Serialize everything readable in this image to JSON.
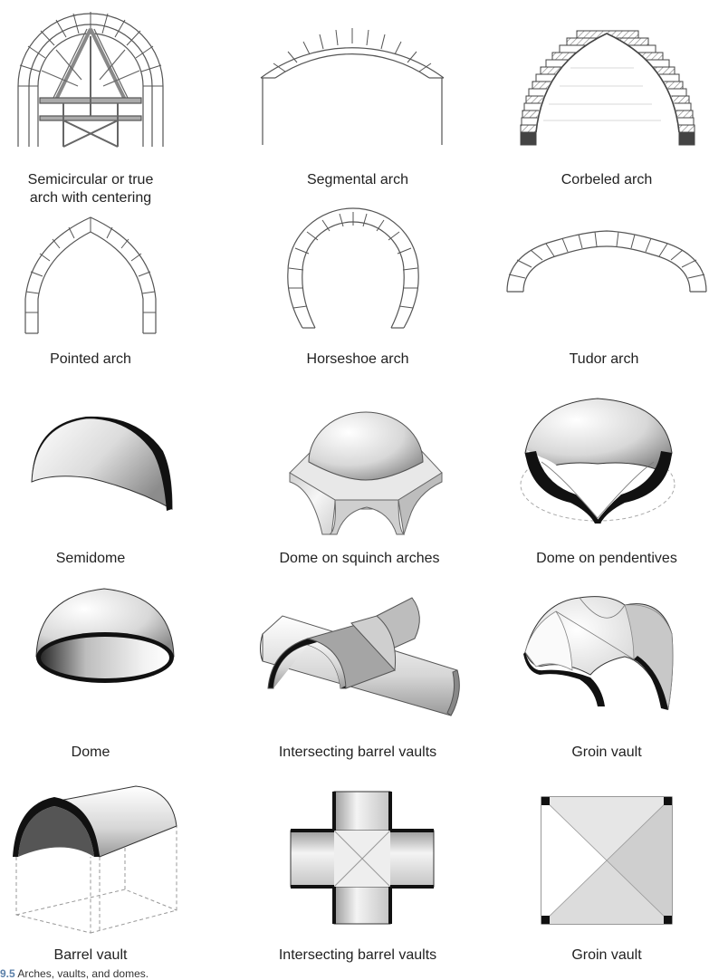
{
  "items": [
    {
      "label": "Semicircular or true\narch with centering",
      "icon": "semicircular-arch-centering"
    },
    {
      "label": "Segmental arch",
      "icon": "segmental-arch"
    },
    {
      "label": "Corbeled arch",
      "icon": "corbeled-arch"
    },
    {
      "label": "Pointed arch",
      "icon": "pointed-arch"
    },
    {
      "label": "Horseshoe arch",
      "icon": "horseshoe-arch"
    },
    {
      "label": "Tudor arch",
      "icon": "tudor-arch"
    },
    {
      "label": "Semidome",
      "icon": "semidome"
    },
    {
      "label": "Dome on squinch arches",
      "icon": "dome-on-squinches"
    },
    {
      "label": "Dome on pendentives",
      "icon": "dome-on-pendentives"
    },
    {
      "label": "Dome",
      "icon": "dome"
    },
    {
      "label": "Intersecting barrel vaults",
      "icon": "intersecting-barrel-vaults"
    },
    {
      "label": "Groin vault",
      "icon": "groin-vault"
    },
    {
      "label": "Barrel vault",
      "icon": "barrel-vault"
    },
    {
      "label": "Intersecting barrel vaults",
      "icon": "intersecting-barrel-vaults-plan"
    },
    {
      "label": "Groin vault",
      "icon": "groin-vault-plan"
    }
  ],
  "caption": {
    "number": "9.5",
    "text": "Arches, vaults, and domes."
  },
  "colors": {
    "line": "#444444",
    "dark": "#111111",
    "hatch": "#888888"
  }
}
